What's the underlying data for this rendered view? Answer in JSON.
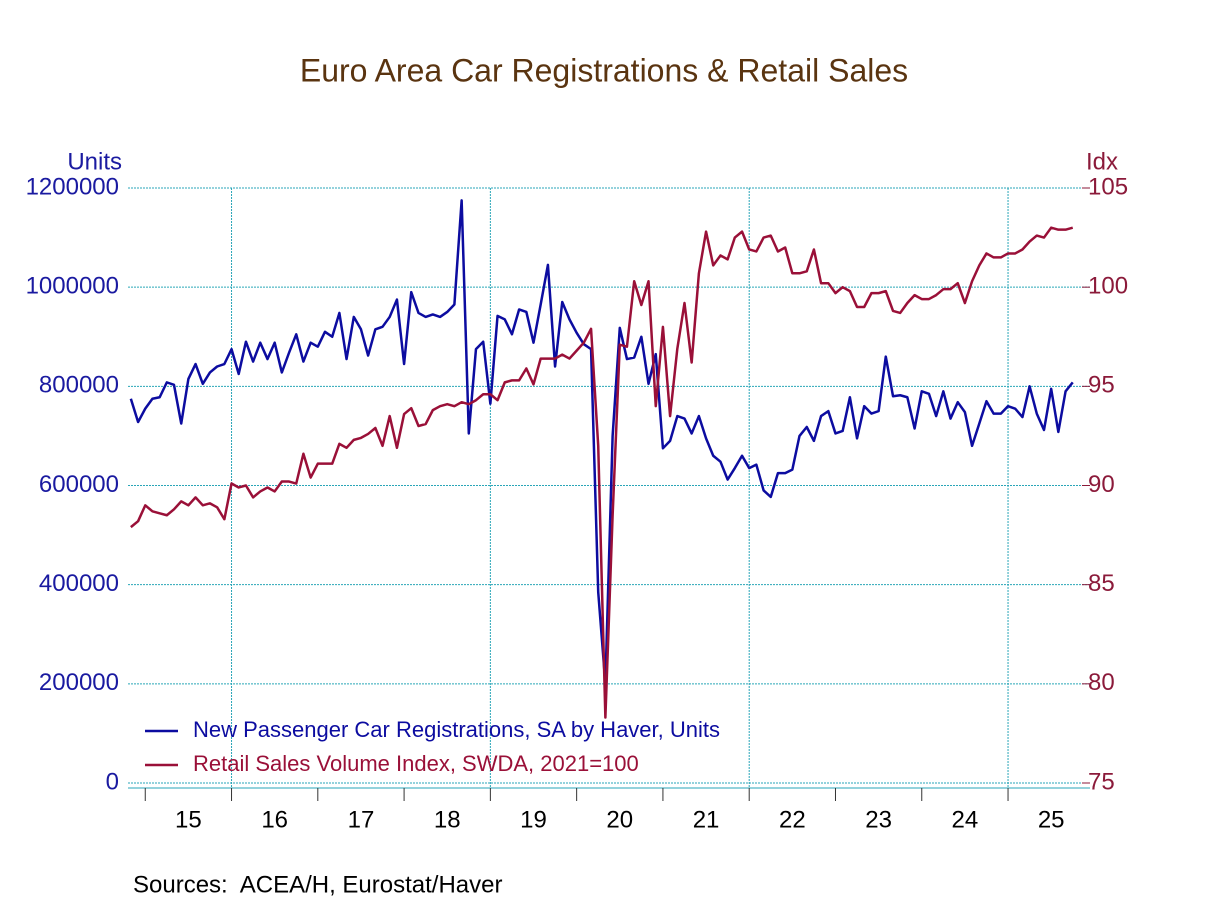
{
  "chart_data": {
    "type": "line",
    "title": "Euro Area Car Registrations & Retail Sales",
    "y_label": "Units",
    "y2_label": "Idx",
    "source": "Sources:  ACEA/H, Eurostat/Haver",
    "x": [
      14.833,
      14.917,
      15,
      15.083,
      15.167,
      15.25,
      15.333,
      15.417,
      15.5,
      15.583,
      15.667,
      15.75,
      15.833,
      15.917,
      16,
      16.083,
      16.167,
      16.25,
      16.333,
      16.417,
      16.5,
      16.583,
      16.667,
      16.75,
      16.833,
      16.917,
      17,
      17.083,
      17.167,
      17.25,
      17.333,
      17.417,
      17.5,
      17.583,
      17.667,
      17.75,
      17.833,
      17.917,
      18,
      18.083,
      18.167,
      18.25,
      18.333,
      18.417,
      18.5,
      18.583,
      18.667,
      18.75,
      18.833,
      18.917,
      19,
      19.083,
      19.167,
      19.25,
      19.333,
      19.417,
      19.5,
      19.583,
      19.667,
      19.75,
      19.833,
      19.917,
      20,
      20.083,
      20.167,
      20.25,
      20.333,
      20.417,
      20.5,
      20.583,
      20.667,
      20.75,
      20.833,
      20.917,
      21,
      21.083,
      21.167,
      21.25,
      21.333,
      21.417,
      21.5,
      21.583,
      21.667,
      21.75,
      21.833,
      21.917,
      22,
      22.083,
      22.167,
      22.25,
      22.333,
      22.417,
      22.5,
      22.583,
      22.667,
      22.75,
      22.833,
      22.917,
      23,
      23.083,
      23.167,
      23.25,
      23.333,
      23.417,
      23.5,
      23.583,
      23.667,
      23.75,
      23.833,
      23.917,
      24,
      24.083,
      24.167,
      24.25,
      24.333,
      24.417,
      24.5,
      24.583,
      24.667,
      24.75,
      24.833,
      24.917,
      25,
      25.083,
      25.167,
      25.25,
      25.333,
      25.417,
      25.5,
      25.583,
      25.667,
      25.75
    ],
    "series": [
      {
        "name": "New Passenger Car Registrations, SA by Haver, Units",
        "color": "#0c0ca0",
        "axis": "y",
        "values": [
          775000,
          728000,
          755000,
          775000,
          778000,
          808000,
          803000,
          725000,
          815000,
          845000,
          805000,
          828000,
          840000,
          845000,
          875000,
          825000,
          890000,
          850000,
          888000,
          855000,
          888000,
          828000,
          868000,
          905000,
          850000,
          888000,
          880000,
          910000,
          900000,
          948000,
          855000,
          940000,
          915000,
          862000,
          915000,
          920000,
          940000,
          975000,
          845000,
          990000,
          948000,
          940000,
          945000,
          940000,
          950000,
          965000,
          1175000,
          705000,
          875000,
          890000,
          765000,
          942000,
          935000,
          905000,
          955000,
          950000,
          888000,
          965000,
          1045000,
          840000,
          970000,
          935000,
          908000,
          885000,
          875000,
          385000,
          200000,
          700000,
          918000,
          855000,
          858000,
          900000,
          805000,
          865000,
          675000,
          690000,
          740000,
          735000,
          705000,
          740000,
          695000,
          660000,
          648000,
          612000,
          635000,
          660000,
          635000,
          642000,
          590000,
          577000,
          625000,
          625000,
          632000,
          700000,
          718000,
          690000,
          740000,
          750000,
          705000,
          710000,
          778000,
          695000,
          760000,
          745000,
          750000,
          860000,
          780000,
          782000,
          778000,
          715000,
          790000,
          785000,
          740000,
          790000,
          735000,
          768000,
          748000,
          680000,
          725000,
          770000,
          745000,
          745000,
          760000,
          755000,
          738000,
          800000,
          745000,
          712000,
          795000,
          708000,
          790000,
          808000
        ]
      },
      {
        "name": "Retail Sales Volume Index, SWDA, 2021=100",
        "color": "#9a1038",
        "axis": "y2",
        "values": [
          87.9,
          88.2,
          89.0,
          88.7,
          88.6,
          88.5,
          88.8,
          89.2,
          89.0,
          89.4,
          89.0,
          89.1,
          88.9,
          88.3,
          90.1,
          89.9,
          90.0,
          89.4,
          89.7,
          89.9,
          89.7,
          90.2,
          90.2,
          90.1,
          91.6,
          90.4,
          91.1,
          91.1,
          91.1,
          92.1,
          91.9,
          92.3,
          92.4,
          92.6,
          92.9,
          92.0,
          93.5,
          91.9,
          93.6,
          93.9,
          93.0,
          93.1,
          93.8,
          94.0,
          94.1,
          94.0,
          94.2,
          94.1,
          94.3,
          94.6,
          94.6,
          94.3,
          95.2,
          95.3,
          95.3,
          95.9,
          95.1,
          96.4,
          96.4,
          96.4,
          96.6,
          96.4,
          96.8,
          97.2,
          97.9,
          92.0,
          78.3,
          88.5,
          97.1,
          97.0,
          100.3,
          99.1,
          100.3,
          94.0,
          98.0,
          93.5,
          96.9,
          99.2,
          96.2,
          100.7,
          102.8,
          101.1,
          101.6,
          101.4,
          102.5,
          102.8,
          101.9,
          101.8,
          102.5,
          102.6,
          101.8,
          102.0,
          100.7,
          100.7,
          100.8,
          101.9,
          100.2,
          100.2,
          99.7,
          100.0,
          99.8,
          99.0,
          99.0,
          99.7,
          99.7,
          99.8,
          98.8,
          98.7,
          99.2,
          99.6,
          99.4,
          99.4,
          99.6,
          99.9,
          99.9,
          100.2,
          99.2,
          100.3,
          101.1,
          101.7,
          101.5,
          101.5,
          101.7,
          101.7,
          101.9,
          102.3,
          102.6,
          102.5,
          103.0,
          102.9,
          102.9,
          103.0
        ]
      }
    ],
    "xlim": [
      14.8,
      25.95
    ],
    "xticks": [
      {
        "value": 15,
        "label": "15"
      },
      {
        "value": 16,
        "label": "16"
      },
      {
        "value": 17,
        "label": "17"
      },
      {
        "value": 18,
        "label": "18"
      },
      {
        "value": 19,
        "label": "19"
      },
      {
        "value": 20,
        "label": "20"
      },
      {
        "value": 21,
        "label": "21"
      },
      {
        "value": 22,
        "label": "22"
      },
      {
        "value": 23,
        "label": "23"
      },
      {
        "value": 24,
        "label": "24"
      },
      {
        "value": 25,
        "label": "25"
      }
    ],
    "x_grid": [
      16,
      19,
      22,
      25
    ],
    "ylim": [
      0,
      1200000
    ],
    "yticks": [
      0,
      200000,
      400000,
      600000,
      800000,
      1000000,
      1200000
    ],
    "y2lim": [
      75,
      105
    ],
    "y2ticks": [
      75,
      80,
      85,
      90,
      95,
      100,
      105
    ],
    "grid": true
  }
}
